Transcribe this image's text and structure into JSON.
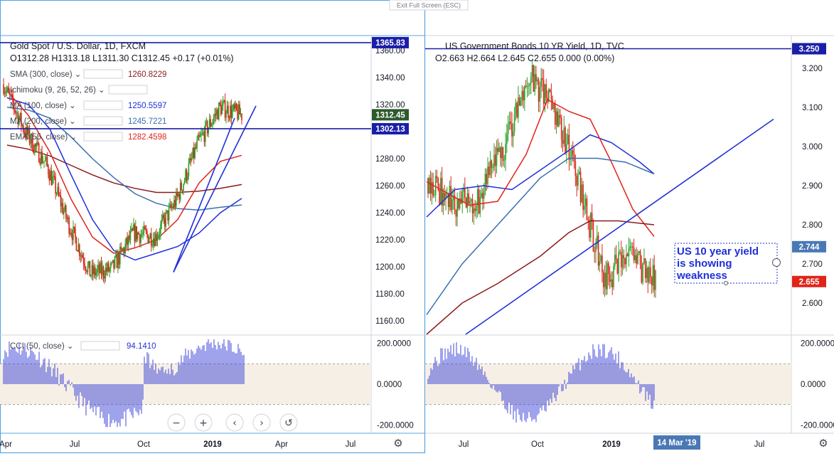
{
  "exit_fullscreen": "Exit Full Screen (ESC)",
  "colors": {
    "up": "#2ca02c",
    "down": "#e0241a",
    "trend": "#1f2fd8",
    "ma_blue": "#1f2fd8",
    "ma_steel": "#3a6fb0",
    "ma_dark": "#8b1a1a",
    "ema_red": "#e0241a",
    "cci": "#2b33d6",
    "band": "#f6efe6"
  },
  "gold": {
    "title": "Gold Spot / U.S. Dollar, 1D, FXCM",
    "ohlc": "O1312.28  H1313.18  L1311.30  C1312.45  +0.17 (+0.01%)",
    "indicators": [
      {
        "label": "SMA (300, close)",
        "value": "1260.8229",
        "color": "#8b1a1a"
      },
      {
        "label": "Ichimoku (9, 26, 52, 26)",
        "value": "",
        "color": "#434651"
      },
      {
        "label": "MA (100, close)",
        "value": "1250.5597",
        "color": "#1f2fd8"
      },
      {
        "label": "MA (200, close)",
        "value": "1245.7221",
        "color": "#3a6fb0"
      },
      {
        "label": "EMA (55, close)",
        "value": "1282.4598",
        "color": "#e0241a"
      }
    ],
    "yaxis": {
      "min": 1150,
      "max": 1370,
      "ticks": [
        "1360.00",
        "1340.00",
        "1320.00",
        "1300.00",
        "1280.00",
        "1260.00",
        "1240.00",
        "1220.00",
        "1200.00",
        "1180.00",
        "1160.00"
      ],
      "tick_values": [
        1360,
        1340,
        1320,
        1300,
        1280,
        1260,
        1240,
        1220,
        1200,
        1180,
        1160
      ]
    },
    "hlines": [
      {
        "value": 1365.83,
        "label": "1365.83"
      },
      {
        "value": 1302.13,
        "label": "1302.13"
      }
    ],
    "last": {
      "value": 1312.45,
      "label": "1312.45"
    },
    "xticks": [
      "Apr",
      "Jul",
      "Oct",
      "2019",
      "Apr",
      "Jul"
    ],
    "xtick_pos": [
      0,
      0.25,
      0.5,
      0.75,
      1.0,
      1.25
    ],
    "cci": {
      "label": "CCI (50, close)",
      "value": "94.1410",
      "ticks": [
        "200.0000",
        "0.0000",
        "-200.0000"
      ],
      "tick_values": [
        200,
        0,
        -200
      ],
      "min": -230,
      "max": 230
    },
    "buttons": [
      "−",
      "+",
      "‹",
      "›",
      "↺"
    ]
  },
  "bond": {
    "title": "US Government Bonds 10 YR Yield, 1D, TVC",
    "ohlc": "O2.663  H2.664  L2.645  C2.655  0.000 (0.00%)",
    "yaxis": {
      "min": 2.52,
      "max": 3.28,
      "ticks": [
        "3.200",
        "3.100",
        "3.000",
        "2.900",
        "2.800",
        "2.700",
        "2.600"
      ],
      "tick_values": [
        3.2,
        3.1,
        3.0,
        2.9,
        2.8,
        2.7,
        2.6
      ]
    },
    "hlines": [
      {
        "value": 3.25,
        "label": "3.250"
      }
    ],
    "tags": [
      {
        "value": 2.744,
        "label": "2.744",
        "color": "#4a78b4"
      },
      {
        "value": 2.655,
        "label": "2.655",
        "color": "#e0241a"
      }
    ],
    "annotation": [
      "US 10 year yield",
      "is showing",
      "weakness"
    ],
    "xticks": [
      "Jul",
      "Oct",
      "2019",
      "Jul"
    ],
    "xtick_pos": [
      0.25,
      0.5,
      0.75,
      1.25
    ],
    "date_tag": "14 Mar '19",
    "cci": {
      "ticks": [
        "200.0000",
        "0.0000",
        "-200.0000"
      ],
      "tick_values": [
        200,
        0,
        -200
      ],
      "min": -230,
      "max": 230
    }
  },
  "chart_data": [
    {
      "type": "line",
      "title": "Gold Spot / U.S. Dollar, 1D, FXCM",
      "x": [
        "2018-04",
        "2018-05",
        "2018-06",
        "2018-07",
        "2018-08",
        "2018-09",
        "2018-10",
        "2018-11",
        "2018-12",
        "2019-01",
        "2019-02",
        "2019-03"
      ],
      "series": [
        {
          "name": "close",
          "values": [
            1335,
            1300,
            1275,
            1232,
            1195,
            1198,
            1225,
            1222,
            1250,
            1292,
            1318,
            1312.45
          ]
        },
        {
          "name": "SMA (300, close)",
          "values": [
            1290,
            1287,
            1282,
            1275,
            1268,
            1262,
            1258,
            1255,
            1255,
            1256,
            1258,
            1260.82
          ]
        },
        {
          "name": "MA (100, close)",
          "values": [
            1325,
            1320,
            1302,
            1268,
            1235,
            1212,
            1205,
            1210,
            1215,
            1225,
            1240,
            1250.56
          ]
        },
        {
          "name": "MA (200, close)",
          "values": [
            1318,
            1316,
            1310,
            1296,
            1280,
            1266,
            1254,
            1247,
            1243,
            1242,
            1244,
            1245.72
          ]
        },
        {
          "name": "EMA (55, close)",
          "values": [
            1330,
            1312,
            1285,
            1250,
            1222,
            1210,
            1214,
            1220,
            1235,
            1262,
            1278,
            1282.46
          ]
        }
      ],
      "ylim": [
        1150,
        1370
      ]
    },
    {
      "type": "line",
      "title": "US Government Bonds 10 YR Yield, 1D, TVC",
      "x": [
        "2018-06",
        "2018-07",
        "2018-08",
        "2018-09",
        "2018-10",
        "2018-11",
        "2018-12",
        "2019-01",
        "2019-02",
        "2019-03"
      ],
      "series": [
        {
          "name": "close",
          "values": [
            2.92,
            2.85,
            2.86,
            3.0,
            3.18,
            3.1,
            2.9,
            2.66,
            2.72,
            2.655
          ]
        }
      ],
      "ylim": [
        2.52,
        3.28
      ]
    }
  ]
}
